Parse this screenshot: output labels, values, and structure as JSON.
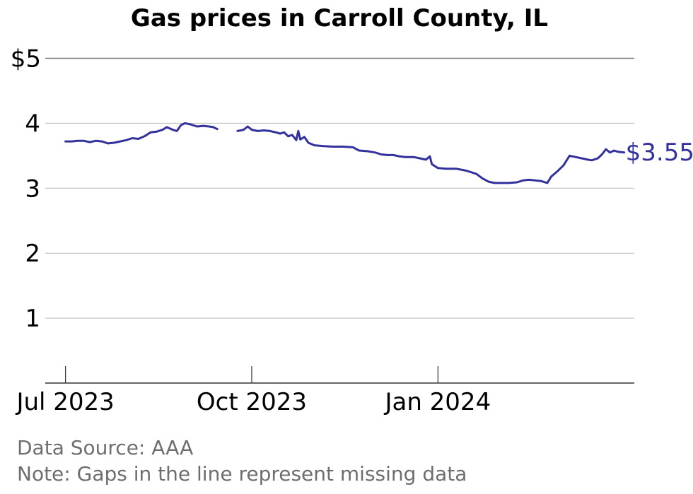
{
  "chart_data": {
    "type": "line",
    "title": "Gas prices in Carroll County, IL",
    "xlabel": "",
    "ylabel": "",
    "y_ticks": [
      {
        "value": 1,
        "label": "1"
      },
      {
        "value": 2,
        "label": "2"
      },
      {
        "value": 3,
        "label": "3"
      },
      {
        "value": 4,
        "label": "4"
      },
      {
        "value": 5,
        "label": "$5"
      }
    ],
    "x_ticks": [
      {
        "date": "2023-07-01",
        "label": "Jul 2023"
      },
      {
        "date": "2023-10-01",
        "label": "Oct 2023"
      },
      {
        "date": "2024-01-01",
        "label": "Jan 2024"
      }
    ],
    "xlim": [
      "2023-06-21",
      "2024-04-07"
    ],
    "ylim": [
      0,
      5
    ],
    "grid": "horizontal",
    "line_color": "#33319b",
    "end_label": "$3.55",
    "series": [
      {
        "segments": [
          [
            [
              "2023-07-01",
              3.72
            ],
            [
              "2023-07-04",
              3.72
            ],
            [
              "2023-07-07",
              3.73
            ],
            [
              "2023-07-10",
              3.73
            ],
            [
              "2023-07-13",
              3.71
            ],
            [
              "2023-07-16",
              3.73
            ],
            [
              "2023-07-19",
              3.72
            ],
            [
              "2023-07-22",
              3.69
            ],
            [
              "2023-07-25",
              3.7
            ],
            [
              "2023-07-28",
              3.72
            ],
            [
              "2023-07-31",
              3.74
            ],
            [
              "2023-08-03",
              3.77
            ],
            [
              "2023-08-06",
              3.76
            ],
            [
              "2023-08-09",
              3.8
            ],
            [
              "2023-08-12",
              3.86
            ],
            [
              "2023-08-15",
              3.87
            ],
            [
              "2023-08-18",
              3.9
            ],
            [
              "2023-08-20",
              3.94
            ],
            [
              "2023-08-23",
              3.9
            ],
            [
              "2023-08-25",
              3.88
            ],
            [
              "2023-08-27",
              3.97
            ],
            [
              "2023-08-29",
              4.0
            ],
            [
              "2023-09-01",
              3.98
            ],
            [
              "2023-09-04",
              3.95
            ],
            [
              "2023-09-07",
              3.96
            ],
            [
              "2023-09-10",
              3.95
            ],
            [
              "2023-09-12",
              3.94
            ],
            [
              "2023-09-14",
              3.91
            ]
          ],
          [
            [
              "2023-09-24",
              3.88
            ],
            [
              "2023-09-27",
              3.9
            ],
            [
              "2023-09-29",
              3.95
            ],
            [
              "2023-10-01",
              3.9
            ],
            [
              "2023-10-04",
              3.88
            ],
            [
              "2023-10-07",
              3.89
            ],
            [
              "2023-10-10",
              3.88
            ],
            [
              "2023-10-13",
              3.86
            ],
            [
              "2023-10-15",
              3.84
            ],
            [
              "2023-10-17",
              3.86
            ],
            [
              "2023-10-19",
              3.8
            ],
            [
              "2023-10-21",
              3.82
            ],
            [
              "2023-10-23",
              3.74
            ],
            [
              "2023-10-24",
              3.88
            ],
            [
              "2023-10-25",
              3.75
            ],
            [
              "2023-10-27",
              3.79
            ],
            [
              "2023-10-29",
              3.7
            ],
            [
              "2023-11-01",
              3.66
            ],
            [
              "2023-11-05",
              3.65
            ],
            [
              "2023-11-10",
              3.64
            ],
            [
              "2023-11-15",
              3.64
            ],
            [
              "2023-11-20",
              3.63
            ],
            [
              "2023-11-23",
              3.58
            ],
            [
              "2023-11-27",
              3.57
            ],
            [
              "2023-12-01",
              3.55
            ],
            [
              "2023-12-04",
              3.52
            ],
            [
              "2023-12-07",
              3.51
            ],
            [
              "2023-12-10",
              3.51
            ],
            [
              "2023-12-13",
              3.49
            ],
            [
              "2023-12-16",
              3.48
            ],
            [
              "2023-12-20",
              3.48
            ],
            [
              "2023-12-23",
              3.46
            ],
            [
              "2023-12-26",
              3.44
            ],
            [
              "2023-12-28",
              3.49
            ],
            [
              "2023-12-29",
              3.37
            ],
            [
              "2024-01-01",
              3.31
            ],
            [
              "2024-01-05",
              3.3
            ],
            [
              "2024-01-10",
              3.3
            ],
            [
              "2024-01-15",
              3.27
            ],
            [
              "2024-01-20",
              3.22
            ],
            [
              "2024-01-23",
              3.15
            ],
            [
              "2024-01-26",
              3.1
            ],
            [
              "2024-01-29",
              3.08
            ],
            [
              "2024-02-01",
              3.08
            ],
            [
              "2024-02-05",
              3.08
            ],
            [
              "2024-02-09",
              3.09
            ],
            [
              "2024-02-12",
              3.12
            ],
            [
              "2024-02-15",
              3.13
            ],
            [
              "2024-02-18",
              3.12
            ],
            [
              "2024-02-21",
              3.11
            ],
            [
              "2024-02-24",
              3.08
            ],
            [
              "2024-02-26",
              3.18
            ],
            [
              "2024-02-29",
              3.26
            ],
            [
              "2024-03-03",
              3.35
            ],
            [
              "2024-03-06",
              3.5
            ],
            [
              "2024-03-09",
              3.48
            ],
            [
              "2024-03-12",
              3.46
            ],
            [
              "2024-03-15",
              3.44
            ],
            [
              "2024-03-17",
              3.43
            ],
            [
              "2024-03-20",
              3.46
            ],
            [
              "2024-03-22",
              3.52
            ],
            [
              "2024-03-24",
              3.6
            ],
            [
              "2024-03-26",
              3.55
            ],
            [
              "2024-03-28",
              3.58
            ],
            [
              "2024-03-30",
              3.56
            ],
            [
              "2024-04-02",
              3.55
            ]
          ]
        ]
      }
    ]
  },
  "footer": {
    "source": "Data Source: AAA",
    "note": "Note: Gaps in the line represent missing data"
  }
}
